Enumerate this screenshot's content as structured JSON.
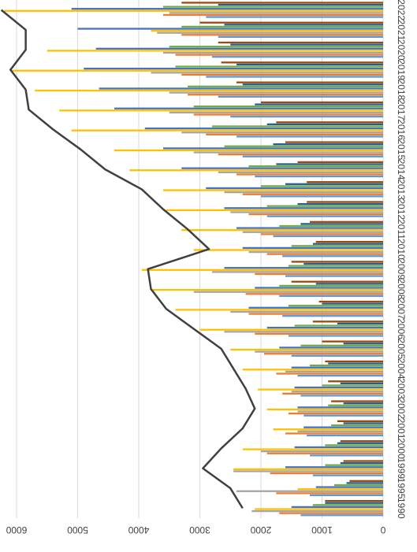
{
  "chart_data": {
    "type": "bar",
    "orientation": "rotated-180",
    "categories": [
      "1990",
      "1995",
      "1999",
      "2000",
      "2001",
      "2002",
      "2003",
      "2004",
      "2005",
      "2006",
      "2007",
      "2008",
      "2009",
      "2010",
      "2011",
      "2012",
      "2013",
      "2014",
      "2015",
      "2016",
      "2017",
      "2018",
      "2019",
      "2020",
      "2021",
      "2022"
    ],
    "value_axis": {
      "ticks": [
        "0",
        "1000",
        "2000",
        "3000",
        "4000",
        "5000",
        "6000"
      ],
      "range": [
        0,
        6000
      ]
    },
    "grid": true,
    "legend": "none",
    "series_colors": [
      "#5b9bd5",
      "#ed7d31",
      "#a5a5a5",
      "#ffc000",
      "#4472c4",
      "#70ad47",
      "#255e91",
      "#9e480e"
    ],
    "series": [
      {
        "values": [
          1350,
          1200,
          1150,
          1200,
          1250,
          1300,
          1350,
          1400,
          1500,
          1550,
          1650,
          1700,
          1600,
          1650,
          1800,
          1900,
          2000,
          2100,
          2300,
          2400,
          2500,
          2700,
          2900,
          2800,
          2700,
          2900
        ]
      },
      {
        "values": [
          1700,
          1750,
          1850,
          1900,
          1600,
          1550,
          1650,
          1750,
          1950,
          2100,
          2200,
          2250,
          2100,
          1900,
          2000,
          2200,
          2300,
          2400,
          2700,
          2900,
          3100,
          3200,
          3300,
          3400,
          3300,
          3600
        ]
      },
      {
        "values": [
          2150,
          2400,
          2450,
          2000,
          1400,
          1400,
          1500,
          1600,
          2100,
          2600,
          2500,
          3100,
          2800,
          2200,
          2300,
          2500,
          2600,
          2700,
          3100,
          3300,
          3500,
          3500,
          3800,
          3600,
          3700,
          3500
        ]
      },
      {
        "values": [
          2100,
          1400,
          2450,
          2300,
          1800,
          1900,
          2050,
          2300,
          2500,
          3000,
          3400,
          3800,
          3950,
          3100,
          3300,
          3550,
          3600,
          4150,
          4400,
          5100,
          5300,
          5700,
          6100,
          5500,
          3800,
          6200
        ]
      },
      {
        "values": [
          1500,
          1100,
          1600,
          1450,
          1300,
          1400,
          1450,
          1500,
          1700,
          1900,
          2200,
          2100,
          2600,
          2300,
          2400,
          2600,
          2900,
          3300,
          3600,
          3900,
          4400,
          4650,
          4900,
          4700,
          5000,
          5100
        ]
      },
      {
        "values": [
          1150,
          800,
          950,
          950,
          850,
          900,
          1000,
          1200,
          1350,
          1450,
          1550,
          1700,
          1550,
          1500,
          1700,
          1900,
          2000,
          2200,
          2600,
          2800,
          3100,
          3200,
          3400,
          3500,
          3300,
          3600
        ]
      },
      {
        "values": [
          950,
          600,
          700,
          750,
          650,
          650,
          700,
          900,
          650,
          750,
          1000,
          1100,
          1300,
          1150,
          1350,
          1400,
          1600,
          1750,
          1800,
          1900,
          2100,
          2300,
          2400,
          2500,
          2600,
          2700
        ]
      },
      {
        "values": [
          950,
          550,
          650,
          700,
          750,
          850,
          900,
          950,
          1000,
          1150,
          1050,
          1500,
          1500,
          1100,
          1200,
          1250,
          1250,
          1400,
          1600,
          1750,
          2000,
          2400,
          2650,
          2700,
          3000,
          3300
        ]
      }
    ],
    "line_series": {
      "color": "#404040",
      "values": [
        2300,
        2500,
        2950,
        2650,
        2300,
        2100,
        2250,
        2450,
        2650,
        3100,
        3550,
        3800,
        3850,
        2850,
        3200,
        3600,
        3950,
        4550,
        4950,
        5400,
        5800,
        5850,
        6100,
        5850,
        5850,
        6250
      ]
    }
  }
}
